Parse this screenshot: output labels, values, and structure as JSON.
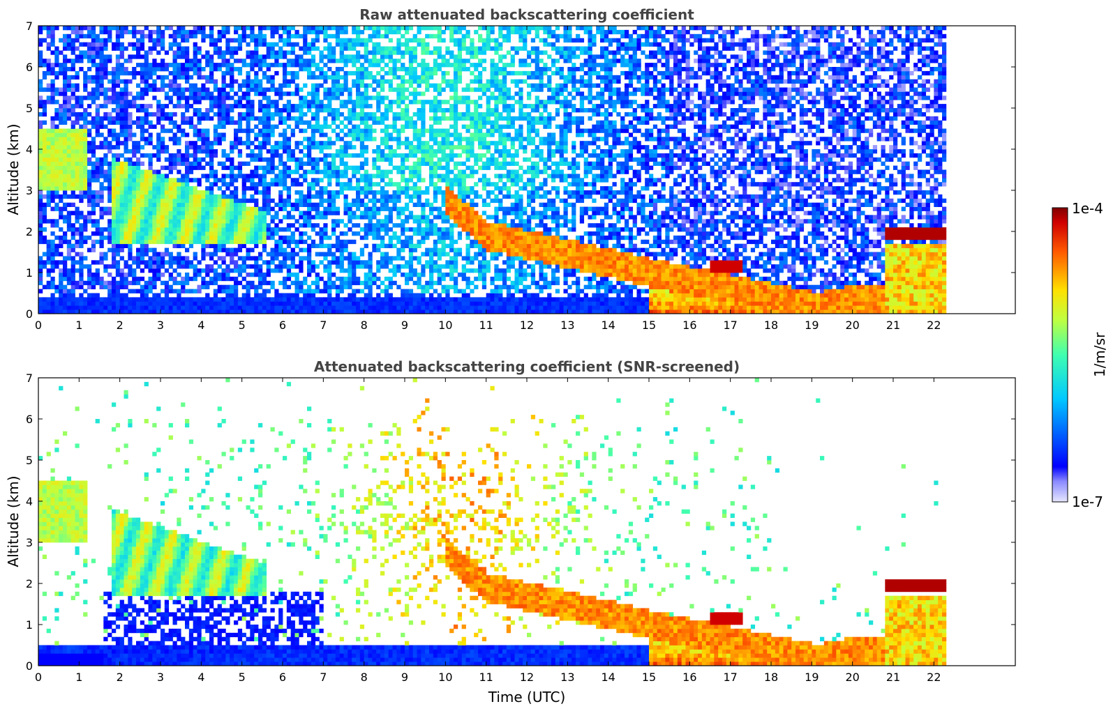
{
  "chart_data": [
    {
      "type": "heatmap",
      "title": "Raw attenuated backscattering coefficient",
      "xlabel": "",
      "ylabel": "Altitude (km)",
      "xlim": [
        0,
        24
      ],
      "ylim": [
        0,
        7
      ],
      "x_ticks": [
        "0",
        "1",
        "2",
        "3",
        "4",
        "5",
        "6",
        "7",
        "8",
        "9",
        "10",
        "11",
        "12",
        "13",
        "14",
        "15",
        "16",
        "17",
        "18",
        "19",
        "20",
        "21",
        "22"
      ],
      "y_ticks": [
        "0",
        "1",
        "2",
        "3",
        "4",
        "5",
        "6",
        "7"
      ],
      "data_end_time": 22.3,
      "features": [
        {
          "label": "aerosol layer",
          "x": [
            0,
            1.2
          ],
          "y": [
            3.0,
            4.5
          ],
          "level": 0.62
        },
        {
          "label": "fall streaks",
          "x": [
            1.8,
            5.5
          ],
          "y": [
            1.7,
            3.8
          ],
          "level": 0.55
        },
        {
          "label": "descending layer",
          "x": [
            10,
            22.3
          ],
          "y": [
            0,
            3.2
          ],
          "level": 0.85
        },
        {
          "label": "cloud top",
          "x": [
            20.8,
            22.3
          ],
          "y": [
            1.8,
            2.1
          ],
          "level": 0.97
        }
      ]
    },
    {
      "type": "heatmap",
      "title": "Attenuated backscattering coefficient (SNR-screened)",
      "xlabel": "Time (UTC)",
      "ylabel": "Altitude (km)",
      "xlim": [
        0,
        24
      ],
      "ylim": [
        0,
        7
      ],
      "x_ticks": [
        "0",
        "1",
        "2",
        "3",
        "4",
        "5",
        "6",
        "7",
        "8",
        "9",
        "10",
        "11",
        "12",
        "13",
        "14",
        "15",
        "16",
        "17",
        "18",
        "19",
        "20",
        "21",
        "22"
      ],
      "y_ticks": [
        "0",
        "1",
        "2",
        "3",
        "4",
        "5",
        "6",
        "7"
      ],
      "data_end_time": 22.3
    }
  ],
  "colorbar": {
    "label": "1/m/sr",
    "max_label": "1e-4",
    "min_label": "1e-7",
    "colormap": "jet"
  }
}
